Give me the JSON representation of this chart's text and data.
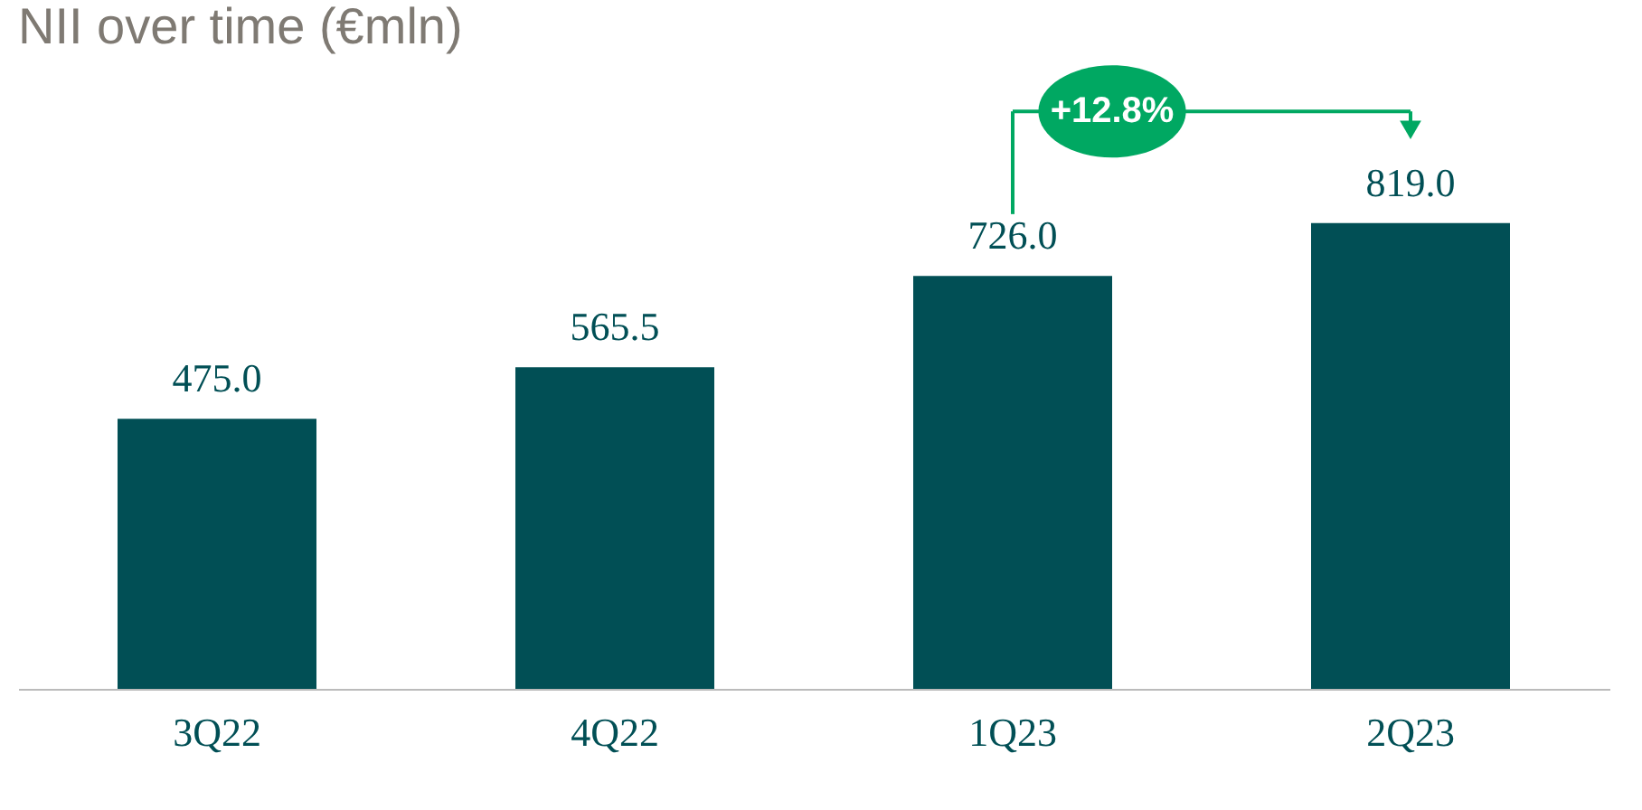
{
  "chart_data": {
    "type": "bar",
    "title": "NII over time (€mln)",
    "categories": [
      "3Q22",
      "4Q22",
      "1Q23",
      "2Q23"
    ],
    "values": [
      475.0,
      565.5,
      726.0,
      819.0
    ],
    "value_labels": [
      "475.0",
      "565.5",
      "726.0",
      "819.0"
    ],
    "color": "#014f55",
    "annotations": [
      "+12.8%"
    ],
    "grid": false
  }
}
